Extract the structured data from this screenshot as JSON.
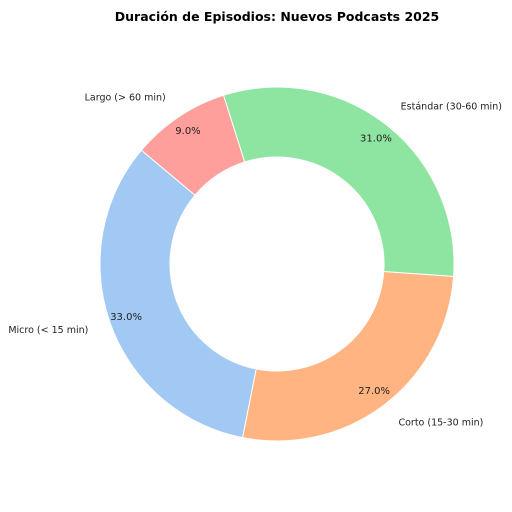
{
  "chart_data": {
    "type": "pie",
    "style": "donut",
    "title": "Duración de Episodios: Nuevos Podcasts 2025",
    "categories": [
      "Micro (< 15 min)",
      "Corto (15-30 min)",
      "Estándar (30-60 min)",
      "Largo (> 60 min)"
    ],
    "values": [
      33.0,
      27.0,
      31.0,
      9.0
    ],
    "value_labels": [
      "33.0%",
      "27.0%",
      "31.0%",
      "9.0%"
    ],
    "colors": [
      "#a1c9f4",
      "#ffb482",
      "#8de5a1",
      "#ff9f9b"
    ],
    "start_angle_deg": 140,
    "direction": "counterclockwise",
    "legend": "none"
  }
}
